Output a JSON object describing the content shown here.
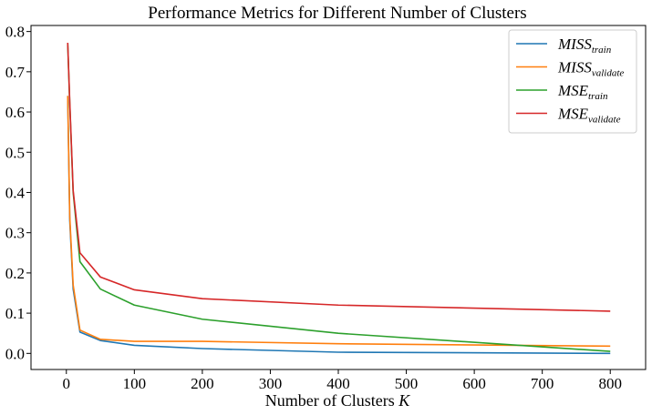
{
  "chart_data": {
    "type": "line",
    "title": "Performance Metrics for Different Number of Clusters",
    "xlabel": "Number of Clusters",
    "xlabel_var": "K",
    "ylabel": "",
    "xlim": [
      -52,
      852
    ],
    "ylim": [
      -0.04,
      0.815
    ],
    "xticks": [
      0,
      100,
      200,
      300,
      400,
      500,
      600,
      700,
      800
    ],
    "yticks": [
      0.0,
      0.1,
      0.2,
      0.3,
      0.4,
      0.5,
      0.6,
      0.7,
      0.8
    ],
    "grid": false,
    "legend_position": "top-right",
    "x": [
      2,
      5,
      10,
      20,
      50,
      100,
      200,
      400,
      800
    ],
    "series": [
      {
        "name": "MISS",
        "subscript": "train",
        "color": "#1f77b4",
        "values": [
          0.64,
          0.33,
          0.16,
          0.053,
          0.032,
          0.02,
          0.012,
          0.003,
          0.0
        ]
      },
      {
        "name": "MISS",
        "subscript": "validate",
        "color": "#ff7f0e",
        "values": [
          0.64,
          0.34,
          0.17,
          0.058,
          0.035,
          0.03,
          0.03,
          0.024,
          0.018
        ]
      },
      {
        "name": "MSE",
        "subscript": "train",
        "color": "#2ca02c",
        "values": [
          0.77,
          0.62,
          0.4,
          0.228,
          0.16,
          0.12,
          0.085,
          0.05,
          0.005
        ]
      },
      {
        "name": "MSE",
        "subscript": "validate",
        "color": "#d62728",
        "values": [
          0.772,
          0.625,
          0.405,
          0.25,
          0.19,
          0.158,
          0.136,
          0.12,
          0.105
        ]
      }
    ]
  }
}
